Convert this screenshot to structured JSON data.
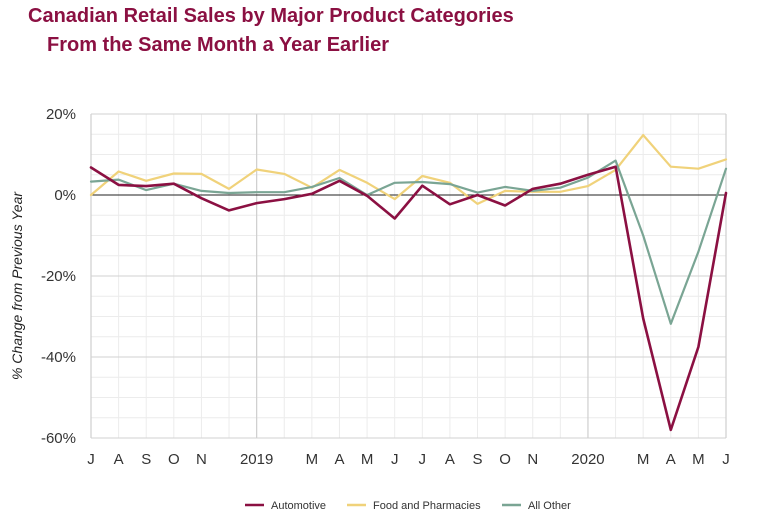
{
  "chart_data": {
    "type": "line",
    "title_line1": "Canadian Retail Sales by Major Product Categories",
    "title_line2": "From the Same Month a Year Earlier",
    "ylabel": "% Change from Previous Year",
    "xlabel": "",
    "ylim": [
      -60,
      20
    ],
    "yticks": [
      20,
      0,
      -20,
      -40,
      -60
    ],
    "ytick_labels": [
      "20%",
      "0%",
      "-20%",
      "-40%",
      "-60%"
    ],
    "categories": [
      "2018-07",
      "2018-08",
      "2018-09",
      "2018-10",
      "2018-11",
      "2018-12",
      "2019-01",
      "2019-02",
      "2019-03",
      "2019-04",
      "2019-05",
      "2019-06",
      "2019-07",
      "2019-08",
      "2019-09",
      "2019-10",
      "2019-11",
      "2019-12",
      "2020-01",
      "2020-02",
      "2020-03",
      "2020-04",
      "2020-05",
      "2020-06"
    ],
    "tick_labels": [
      "J",
      "A",
      "S",
      "O",
      "N",
      "",
      "2019",
      "",
      "M",
      "A",
      "M",
      "J",
      "J",
      "A",
      "S",
      "O",
      "N",
      "",
      "2020",
      "",
      "M",
      "A",
      "M",
      "J"
    ],
    "grid": true,
    "legend_position": "bottom",
    "series": [
      {
        "name": "Automotive",
        "color": "#8b1042",
        "values": [
          6.8,
          2.5,
          2.2,
          2.8,
          -0.8,
          -3.8,
          -2.0,
          -1.0,
          0.3,
          3.5,
          -0.2,
          -5.8,
          2.3,
          -2.3,
          0.0,
          -2.6,
          1.5,
          2.8,
          5.0,
          7.0,
          -30.5,
          -58.0,
          -37.5,
          0.5
        ]
      },
      {
        "name": "Food and Pharmacies",
        "color": "#f0d27a",
        "values": [
          0.0,
          5.8,
          3.5,
          5.3,
          5.2,
          1.5,
          6.3,
          5.2,
          1.8,
          6.2,
          3.0,
          -1.0,
          4.7,
          3.0,
          -2.2,
          1.0,
          0.8,
          0.8,
          2.2,
          6.2,
          14.8,
          7.0,
          6.5,
          8.8
        ]
      },
      {
        "name": "All Other",
        "color": "#7aa594",
        "values": [
          3.3,
          3.8,
          1.2,
          2.8,
          1.0,
          0.5,
          0.7,
          0.7,
          2.0,
          4.2,
          0.0,
          3.0,
          3.2,
          2.7,
          0.6,
          2.0,
          1.0,
          1.8,
          4.3,
          8.5,
          -10.0,
          -31.8,
          -14.0,
          6.5
        ]
      }
    ]
  }
}
